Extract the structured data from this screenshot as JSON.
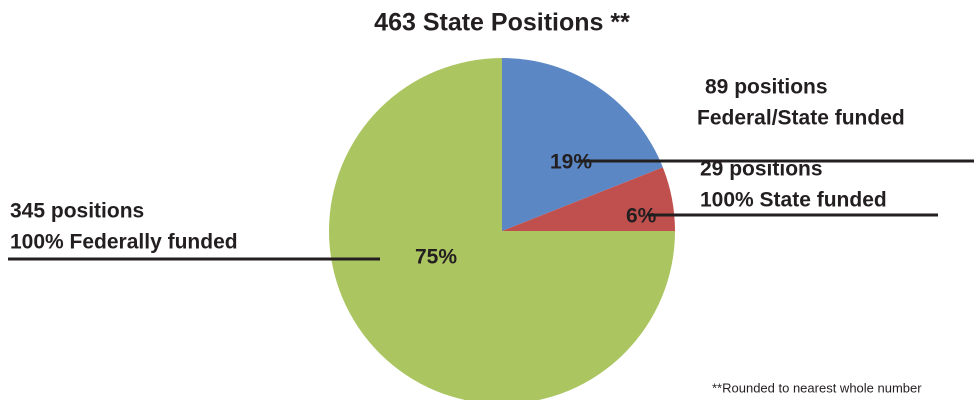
{
  "chart_data": {
    "type": "pie",
    "title": "463 State Positions **",
    "values": [
      19,
      6,
      75
    ],
    "value_labels": [
      "19%",
      "6%",
      "75%"
    ],
    "colors": [
      "#5b87c5",
      "#c0504d",
      "#abc561"
    ],
    "annotations": [
      [
        "89 positions",
        "Federal/State funded"
      ],
      [
        "29 positions",
        "100% State funded"
      ],
      [
        "345 positions",
        "100% Federally funded"
      ]
    ],
    "footnote": "**Rounded to nearest whole number"
  }
}
